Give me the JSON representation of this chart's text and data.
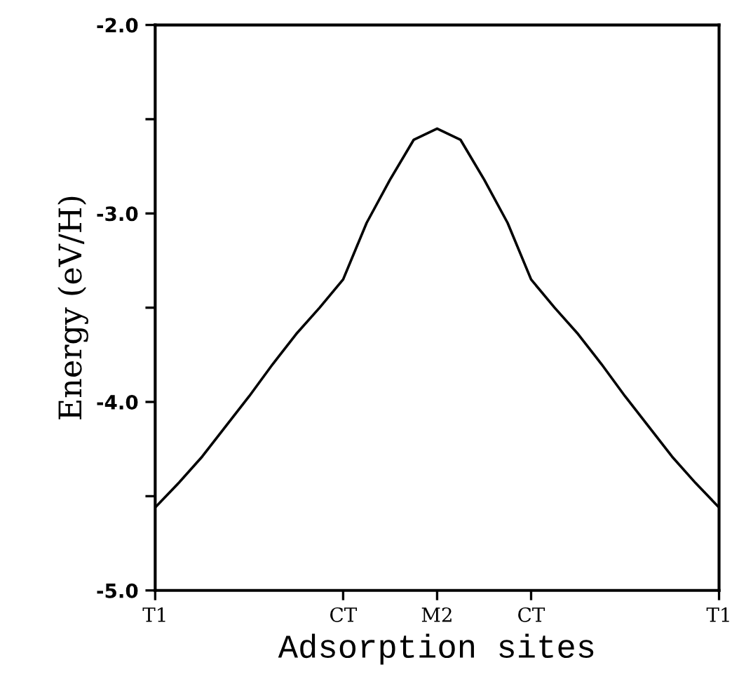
{
  "chart_data": {
    "type": "line",
    "xlabel": "Adsorption sites",
    "ylabel": "Energy (eV/H)",
    "categories": [
      "T1",
      null,
      null,
      null,
      null,
      null,
      null,
      null,
      "CT",
      null,
      null,
      null,
      "M2",
      null,
      null,
      null,
      "CT",
      null,
      null,
      null,
      null,
      null,
      null,
      null,
      "T1"
    ],
    "series": [
      {
        "color": "#000000",
        "values": [
          -4.56,
          -4.43,
          -4.29,
          -4.13,
          -3.97,
          -3.8,
          -3.64,
          -3.5,
          -3.35,
          -3.05,
          -2.82,
          -2.61,
          -2.55,
          -2.61,
          -2.82,
          -3.05,
          -3.35,
          -3.5,
          -3.64,
          -3.8,
          -3.97,
          -4.13,
          -4.29,
          -4.43,
          -4.56
        ]
      }
    ],
    "ylim": [
      -5.0,
      -2.0
    ],
    "yticks": [
      {
        "value": -5.0,
        "label": "-5.0"
      },
      {
        "value": -4.5,
        "label": null
      },
      {
        "value": -4.0,
        "label": "-4.0"
      },
      {
        "value": -3.5,
        "label": null
      },
      {
        "value": -3.0,
        "label": "-3.0"
      },
      {
        "value": -2.5,
        "label": null
      },
      {
        "value": -2.0,
        "label": "-2.0"
      }
    ],
    "grid": false,
    "legend": false,
    "marker": "none",
    "line_style": "solid"
  }
}
